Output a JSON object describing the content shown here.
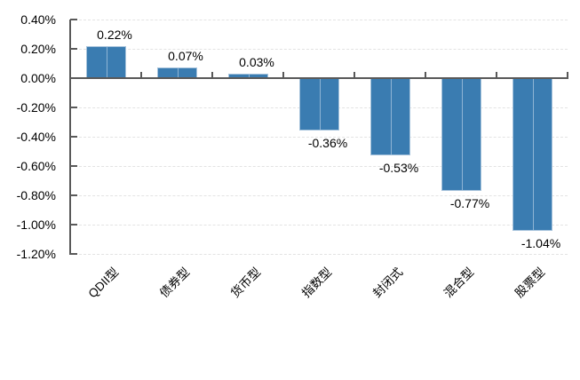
{
  "chart_data": {
    "type": "bar",
    "categories": [
      "QDII型",
      "债券型",
      "货币型",
      "指数型",
      "封闭式",
      "混合型",
      "股票型"
    ],
    "values": [
      0.22,
      0.07,
      0.03,
      -0.36,
      -0.53,
      -0.77,
      -1.04
    ],
    "data_labels": [
      "0.22%",
      "0.07%",
      "0.03%",
      "-0.36%",
      "-0.53%",
      "-0.77%",
      "-1.04%"
    ],
    "y_tick_labels": [
      "0.40%",
      "0.20%",
      "0.00%",
      "-0.20%",
      "-0.40%",
      "-0.60%",
      "-0.80%",
      "-1.00%",
      "-1.20%"
    ],
    "ylim": [
      -1.2,
      0.4
    ],
    "y_step": 0.2,
    "title": "",
    "xlabel": "",
    "ylabel": "",
    "legend_position": "none",
    "grid": true,
    "value_label_position": "outside-end",
    "colors": {
      "bar_fill": "#3A7CB1",
      "bar_border": "#A5C2DB",
      "bar_seam": "#8FB4D4",
      "axis_line": "#595959",
      "gridline": "#E3E3E3",
      "label_text": "#000000",
      "background": "#FFFFFF"
    }
  }
}
